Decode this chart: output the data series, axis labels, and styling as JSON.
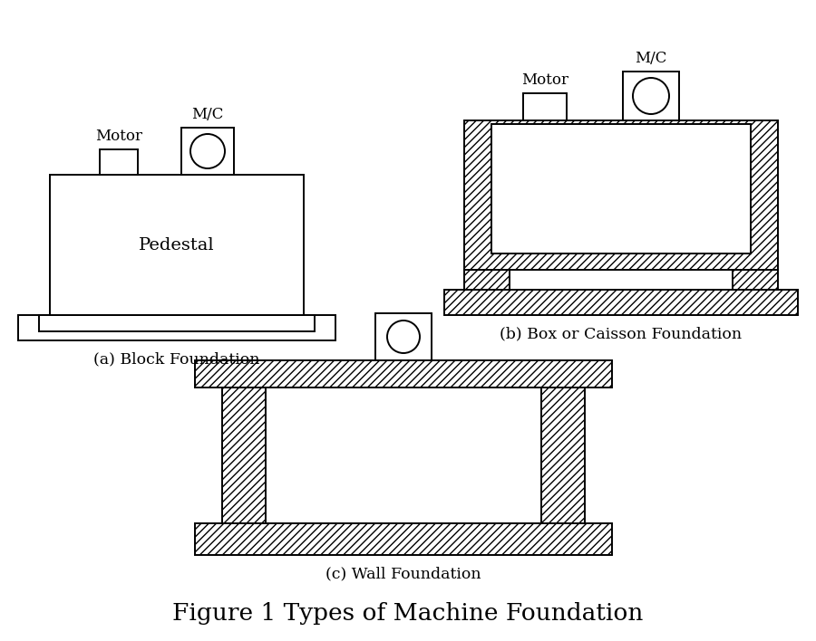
{
  "title": "Figure 1 Types of Machine Foundation",
  "title_fontsize": 19,
  "label_a": "(a) Block Foundation",
  "label_b": "(b) Box or Caisson Foundation",
  "label_c": "(c) Wall Foundation",
  "label_fontsize": 12.5,
  "motor_label": "Motor",
  "mc_label": "M/C",
  "pedestal_label": "Pedestal",
  "bg_color": "#ffffff",
  "line_color": "#000000",
  "hatch_pattern": "////"
}
